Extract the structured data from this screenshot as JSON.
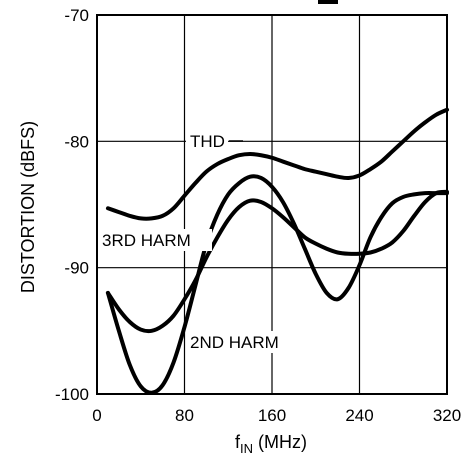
{
  "chart_data": {
    "type": "line",
    "title": "",
    "xlabel": {
      "main": "f",
      "sub": "IN",
      "unit": " (MHz)"
    },
    "ylabel": "DISTORTION (dBFS)",
    "xlim": [
      0,
      320
    ],
    "ylim": [
      -100,
      -70
    ],
    "xticks": [
      0,
      80,
      160,
      240,
      320
    ],
    "yticks": [
      -70,
      -80,
      -90,
      -100
    ],
    "xtick_labels": [
      "0",
      "80",
      "160",
      "240",
      "320"
    ],
    "ytick_labels": [
      "-70",
      "-80",
      "-90",
      "-100"
    ],
    "grid": true,
    "series": [
      {
        "name": "THD",
        "x": [
          10,
          20,
          30,
          40,
          50,
          60,
          70,
          80,
          90,
          100,
          110,
          120,
          130,
          140,
          150,
          160,
          170,
          180,
          190,
          200,
          210,
          220,
          230,
          240,
          250,
          260,
          270,
          280,
          290,
          300,
          310,
          320
        ],
        "y": [
          -85.3,
          -85.6,
          -85.9,
          -86.1,
          -86.1,
          -85.9,
          -85.3,
          -84.3,
          -83.3,
          -82.4,
          -81.8,
          -81.4,
          -81.1,
          -81.0,
          -81.1,
          -81.3,
          -81.6,
          -81.9,
          -82.2,
          -82.4,
          -82.6,
          -82.8,
          -82.9,
          -82.7,
          -82.2,
          -81.6,
          -80.8,
          -80.0,
          -79.2,
          -78.5,
          -77.9,
          -77.5
        ]
      },
      {
        "name": "3RD HARM",
        "x": [
          10,
          20,
          30,
          40,
          50,
          60,
          70,
          80,
          90,
          100,
          110,
          120,
          130,
          140,
          150,
          160,
          170,
          180,
          190,
          200,
          210,
          220,
          230,
          240,
          250,
          260,
          270,
          280,
          290,
          300,
          310,
          320
        ],
        "y": [
          -92.0,
          -93.3,
          -94.3,
          -94.9,
          -95.0,
          -94.6,
          -93.8,
          -92.5,
          -91.0,
          -89.2,
          -87.6,
          -86.2,
          -85.2,
          -84.7,
          -84.8,
          -85.3,
          -86.0,
          -86.8,
          -87.6,
          -88.1,
          -88.5,
          -88.8,
          -88.9,
          -88.9,
          -88.8,
          -88.5,
          -88.0,
          -87.1,
          -85.9,
          -84.8,
          -84.1,
          -84.0
        ]
      },
      {
        "name": "2ND HARM",
        "x": [
          10,
          20,
          30,
          40,
          50,
          60,
          70,
          80,
          90,
          100,
          110,
          120,
          130,
          140,
          150,
          160,
          170,
          180,
          190,
          200,
          210,
          220,
          230,
          240,
          250,
          260,
          270,
          280,
          290,
          300,
          310,
          320
        ],
        "y": [
          -92.0,
          -95.0,
          -97.7,
          -99.4,
          -99.9,
          -99.3,
          -97.5,
          -94.7,
          -91.4,
          -88.1,
          -85.8,
          -84.2,
          -83.3,
          -82.8,
          -82.9,
          -83.6,
          -84.8,
          -86.5,
          -88.5,
          -90.5,
          -92.0,
          -92.5,
          -91.6,
          -89.8,
          -87.6,
          -86.0,
          -84.9,
          -84.4,
          -84.2,
          -84.1,
          -84.1,
          -84.1
        ]
      }
    ],
    "annotations": [
      {
        "text": "THD",
        "series": "THD"
      },
      {
        "text": "3RD HARM",
        "series": "3RD HARM"
      },
      {
        "text": "2ND HARM",
        "series": "2ND HARM"
      }
    ],
    "colors": {
      "line": "#000000",
      "grid": "#000000",
      "background": "#ffffff"
    }
  }
}
